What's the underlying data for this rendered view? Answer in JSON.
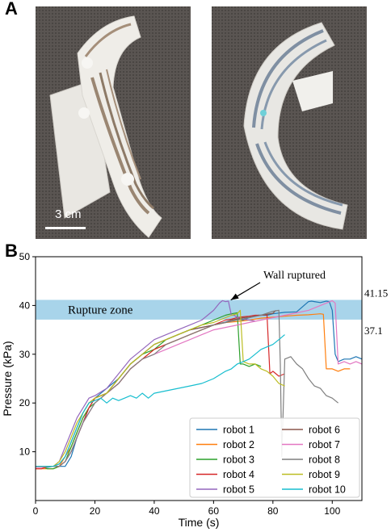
{
  "panel_a": {
    "letter": "A",
    "scalebar_label": "3 cm"
  },
  "panel_b": {
    "letter": "B"
  },
  "chart_data": {
    "type": "line",
    "xlabel": "Time (s)",
    "ylabel": "Pressure (kPa)",
    "xlim": [
      0,
      110
    ],
    "ylim": [
      0,
      50
    ],
    "xticks": [
      0,
      20,
      40,
      60,
      80,
      100
    ],
    "yticks": [
      10,
      20,
      30,
      40,
      50
    ],
    "grid": false,
    "legend_position": "lower-right",
    "band": {
      "label": "Rupture zone",
      "y0": 37.1,
      "y1": 41.15,
      "color": "#a8d4ea"
    },
    "band_labels": {
      "upper": "41.15",
      "lower": "37.1"
    },
    "annotation": {
      "text": "Wall ruptured",
      "x": 65,
      "y": 40.8
    },
    "series": [
      {
        "name": "robot 1",
        "color": "#1f77b4",
        "x": [
          0,
          2,
          4,
          6,
          8,
          10,
          12,
          14,
          16,
          18,
          20,
          24,
          28,
          32,
          36,
          40,
          44,
          48,
          52,
          56,
          60,
          62,
          64,
          66,
          68,
          70,
          72,
          75,
          78,
          80,
          84,
          88,
          92,
          93,
          94,
          96,
          98,
          99,
          100,
          101,
          102,
          104,
          106,
          108,
          110
        ],
        "y": [
          7,
          7,
          6.8,
          7,
          7,
          7,
          9,
          13,
          16,
          19,
          21,
          23,
          25,
          28,
          30,
          32,
          33,
          34,
          35,
          35.5,
          36,
          36.3,
          36.6,
          37,
          37.2,
          37,
          37.5,
          38,
          38,
          38.3,
          38.6,
          38.7,
          40.8,
          40.9,
          40.8,
          40.6,
          40.9,
          40.8,
          39,
          30,
          28.5,
          29,
          29,
          29.5,
          29
        ]
      },
      {
        "name": "robot 2",
        "color": "#ff7f0e",
        "x": [
          0,
          2,
          4,
          6,
          8,
          10,
          12,
          14,
          16,
          18,
          20,
          24,
          28,
          32,
          36,
          40,
          44,
          48,
          52,
          56,
          60,
          64,
          68,
          72,
          76,
          80,
          84,
          88,
          92,
          94,
          96,
          97,
          98,
          100,
          102,
          104,
          106
        ],
        "y": [
          6.5,
          6.5,
          6.5,
          6.5,
          7,
          9,
          11,
          14,
          17,
          19,
          21,
          22,
          24,
          27,
          29,
          31,
          32,
          33,
          34,
          35,
          36,
          36.5,
          36.7,
          37,
          37.4,
          37.6,
          37.8,
          38,
          38.1,
          38.2,
          38.3,
          38.2,
          27,
          27,
          26.5,
          27,
          27
        ]
      },
      {
        "name": "robot 3",
        "color": "#2ca02c",
        "x": [
          0,
          2,
          4,
          6,
          8,
          10,
          12,
          14,
          16,
          18,
          20,
          24,
          28,
          32,
          36,
          40,
          44,
          48,
          52,
          56,
          60,
          62,
          64,
          66,
          68,
          69,
          70,
          72,
          74,
          76
        ],
        "y": [
          7,
          7,
          6.5,
          6.5,
          7,
          8,
          11,
          14,
          17,
          19,
          20,
          22,
          25,
          28,
          30,
          31,
          33,
          34,
          35,
          36,
          37,
          37.5,
          38,
          38.3,
          38.5,
          28,
          28,
          27.5,
          28,
          27.5
        ]
      },
      {
        "name": "robot 4",
        "color": "#d62728",
        "x": [
          0,
          2,
          4,
          6,
          8,
          10,
          12,
          14,
          16,
          18,
          20,
          24,
          28,
          32,
          36,
          40,
          44,
          48,
          52,
          56,
          60,
          62,
          64,
          66,
          68,
          70,
          72,
          74,
          76,
          78,
          79,
          80,
          82,
          84
        ],
        "y": [
          6.5,
          6.5,
          7,
          7,
          7,
          8,
          10,
          13,
          16,
          19,
          21,
          22,
          24,
          27,
          29,
          31,
          32,
          33,
          34,
          35,
          36,
          36.5,
          37,
          37.2,
          37.5,
          37.7,
          37.8,
          38,
          38,
          38.1,
          26,
          26.5,
          25.5,
          26
        ]
      },
      {
        "name": "robot 5",
        "color": "#9467bd",
        "x": [
          0,
          2,
          4,
          6,
          8,
          10,
          12,
          14,
          16,
          18,
          20,
          24,
          28,
          32,
          36,
          40,
          44,
          48,
          52,
          56,
          58,
          60,
          62,
          63,
          64,
          65,
          66,
          67,
          68,
          70,
          72,
          74
        ],
        "y": [
          7,
          7,
          7,
          7,
          8,
          11,
          14,
          17,
          19,
          21,
          21.5,
          23,
          26,
          29,
          31,
          33,
          34,
          35,
          36,
          37,
          38,
          39,
          40.5,
          41,
          40.8,
          40.9,
          38,
          38,
          37.5,
          37.2,
          37,
          36.8
        ]
      },
      {
        "name": "robot 6",
        "color": "#8c564b",
        "x": [
          0,
          2,
          4,
          6,
          8,
          10,
          12,
          14,
          16,
          18,
          20,
          24,
          28,
          32,
          36,
          40,
          44,
          48,
          52,
          56,
          60,
          64,
          66,
          68,
          70,
          72,
          74,
          76,
          78,
          80,
          81
        ],
        "y": [
          7,
          7,
          7,
          7,
          7.5,
          9,
          12,
          15,
          18,
          20,
          21,
          22,
          25,
          28,
          30,
          32,
          33,
          34,
          35,
          35.5,
          36,
          36.5,
          37,
          37.2,
          37.5,
          37.6,
          37.8,
          38,
          38.2,
          38.4,
          39
        ]
      },
      {
        "name": "robot 7",
        "color": "#e377c2",
        "x": [
          0,
          2,
          4,
          6,
          8,
          10,
          12,
          14,
          16,
          18,
          20,
          24,
          28,
          32,
          36,
          40,
          44,
          48,
          52,
          56,
          60,
          64,
          68,
          72,
          76,
          80,
          84,
          88,
          92,
          96,
          98,
          100,
          101,
          102,
          104,
          106,
          108,
          110
        ],
        "y": [
          6.8,
          6.8,
          7,
          7,
          7,
          8,
          10,
          13,
          16,
          18,
          20,
          22,
          24,
          27,
          29,
          30,
          31,
          32,
          33,
          34,
          35,
          35.5,
          36,
          36.5,
          37,
          37.5,
          38,
          38.5,
          39,
          40,
          40.5,
          41,
          40.5,
          28,
          28.5,
          28,
          28.5,
          28
        ]
      },
      {
        "name": "robot 8",
        "color": "#7f7f7f",
        "x": [
          0,
          2,
          4,
          6,
          8,
          10,
          12,
          14,
          16,
          18,
          20,
          24,
          28,
          32,
          36,
          40,
          44,
          48,
          52,
          56,
          60,
          64,
          68,
          72,
          76,
          80,
          82,
          82.5,
          83,
          84,
          86,
          88,
          90,
          92,
          94,
          96,
          98,
          100,
          102
        ],
        "y": [
          7,
          7,
          7,
          7,
          7,
          8,
          10,
          13,
          16,
          18,
          20,
          22,
          24,
          27,
          29,
          30,
          32,
          33,
          34,
          35,
          36,
          36.5,
          37,
          37.5,
          38,
          38.8,
          39,
          28,
          9,
          29,
          29.5,
          28,
          27,
          25,
          23.5,
          23,
          21.5,
          21,
          20
        ]
      },
      {
        "name": "robot 9",
        "color": "#bcbd22",
        "x": [
          0,
          2,
          4,
          6,
          8,
          10,
          12,
          14,
          16,
          18,
          20,
          24,
          28,
          32,
          36,
          40,
          44,
          48,
          52,
          56,
          60,
          62,
          64,
          66,
          68,
          69,
          70,
          72,
          74,
          76,
          78,
          80,
          82,
          84
        ],
        "y": [
          7,
          7,
          7,
          7,
          8,
          10,
          13,
          16,
          18,
          20,
          21,
          22,
          25,
          28,
          30,
          32,
          33,
          34,
          35,
          36,
          36.5,
          37,
          37.5,
          38,
          38.3,
          39,
          28.5,
          28,
          28,
          27,
          26.5,
          25.5,
          24,
          23.5
        ]
      },
      {
        "name": "robot 10",
        "color": "#17becf",
        "x": [
          0,
          2,
          4,
          6,
          8,
          10,
          12,
          14,
          16,
          18,
          20,
          22,
          24,
          26,
          28,
          30,
          32,
          34,
          36,
          38,
          40,
          44,
          48,
          52,
          56,
          60,
          64,
          66,
          68,
          70,
          72,
          74,
          76,
          78,
          80,
          82,
          84
        ],
        "y": [
          7,
          7,
          7,
          7,
          7.5,
          9,
          12,
          15,
          18,
          20,
          20.5,
          21,
          20,
          21,
          20.5,
          21,
          21.5,
          21,
          22,
          21,
          22,
          22.5,
          23,
          23.5,
          24,
          25,
          26.5,
          27,
          28,
          28.5,
          29,
          30,
          31,
          31.5,
          32,
          33,
          34
        ]
      }
    ]
  }
}
